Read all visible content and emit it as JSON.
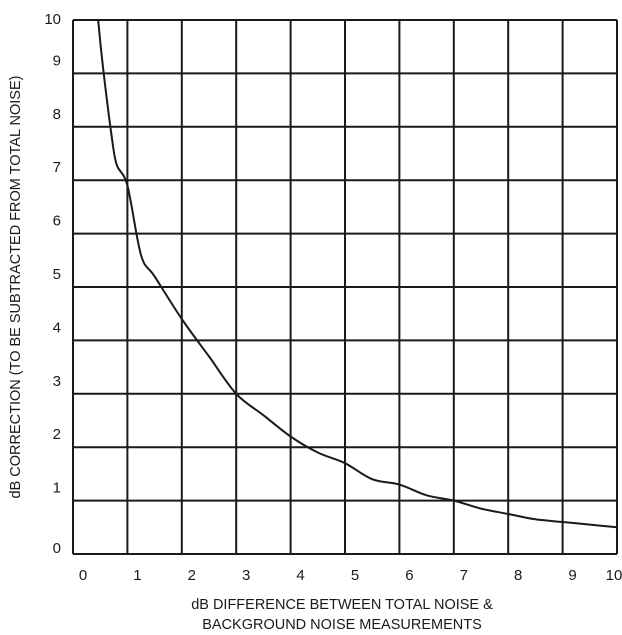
{
  "chart_data": {
    "type": "line",
    "title": "",
    "xlabel_lines": [
      "dB DIFFERENCE BETWEEN TOTAL NOISE &",
      "BACKGROUND NOISE MEASUREMENTS"
    ],
    "ylabel": "dB CORRECTION (TO BE SUBTRACTED FROM TOTAL NOISE)",
    "xlim": [
      0,
      10
    ],
    "ylim": [
      0,
      10
    ],
    "x_ticks": [
      "0",
      "1",
      "2",
      "3",
      "4",
      "5",
      "6",
      "7",
      "8",
      "9",
      "10"
    ],
    "y_ticks": [
      "0",
      "1",
      "2",
      "3",
      "4",
      "5",
      "6",
      "7",
      "8",
      "9",
      "10"
    ],
    "grid": true,
    "legend": "none",
    "series": [
      {
        "x": [
          0.4,
          0.5,
          0.6,
          0.7,
          0.8,
          1,
          1.25,
          1.5,
          2,
          2.5,
          3,
          3.5,
          4,
          4.5,
          5,
          5.5,
          6,
          6.5,
          7,
          7.5,
          8,
          8.5,
          9,
          9.5,
          10
        ],
        "y": [
          10.7,
          9.6,
          8.7,
          7.9,
          7.3,
          6.9,
          5.6,
          5.2,
          4.4,
          3.7,
          3.0,
          2.6,
          2.2,
          1.9,
          1.7,
          1.4,
          1.3,
          1.1,
          1.0,
          0.85,
          0.75,
          0.65,
          0.6,
          0.55,
          0.5
        ],
        "color": "#1a1a1a"
      }
    ]
  }
}
